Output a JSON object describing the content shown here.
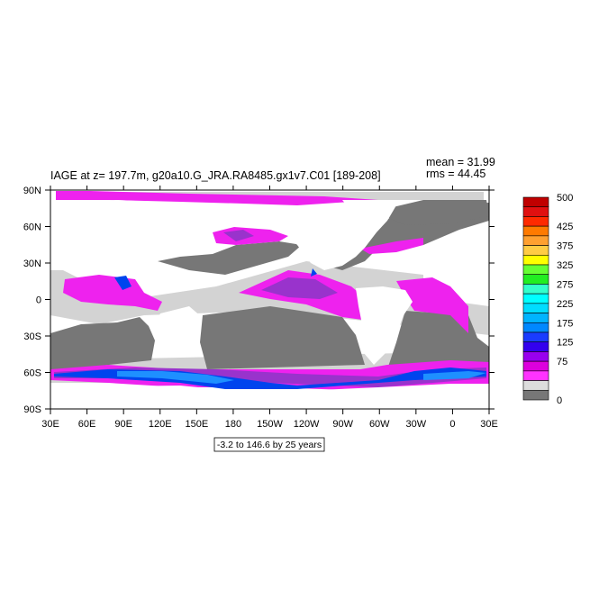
{
  "title": "IAGE at z= 197.7m, g20a10.G_JRA.RA8485.gx1v7.C01 [189-208]",
  "stats": {
    "mean": "mean = 31.99",
    "rms": "rms = 44.45"
  },
  "range_note": "-3.2 to 146.6 by 25 years",
  "lon_ticks": [
    "30E",
    "60E",
    "90E",
    "120E",
    "150E",
    "180",
    "150W",
    "120W",
    "90W",
    "60W",
    "30W",
    "0",
    "30E"
  ],
  "lat_ticks": [
    "90N",
    "60N",
    "30N",
    "0",
    "30S",
    "60S",
    "90S"
  ],
  "colorbar": {
    "labels": [
      "500",
      "425",
      "375",
      "325",
      "275",
      "225",
      "175",
      "125",
      "75",
      "0"
    ],
    "colors": [
      "#c00000",
      "#e01010",
      "#ff2a00",
      "#ff7a00",
      "#ffa030",
      "#ffcc44",
      "#ffff00",
      "#66ff33",
      "#22ee22",
      "#33ffcc",
      "#00ffff",
      "#00ddff",
      "#00b4ff",
      "#0088ff",
      "#1a3cff",
      "#3300ee",
      "#9900ee",
      "#dd00dd",
      "#ff33ff",
      "#dddddd",
      "#777777"
    ]
  },
  "legend_colors": {
    "land": "#ffffff",
    "gray": "#777777",
    "light": "#d3d3d3",
    "magenta": "#ee22ee",
    "purple": "#9933cc",
    "blue": "#0044ee",
    "cyan": "#1e90ff"
  }
}
